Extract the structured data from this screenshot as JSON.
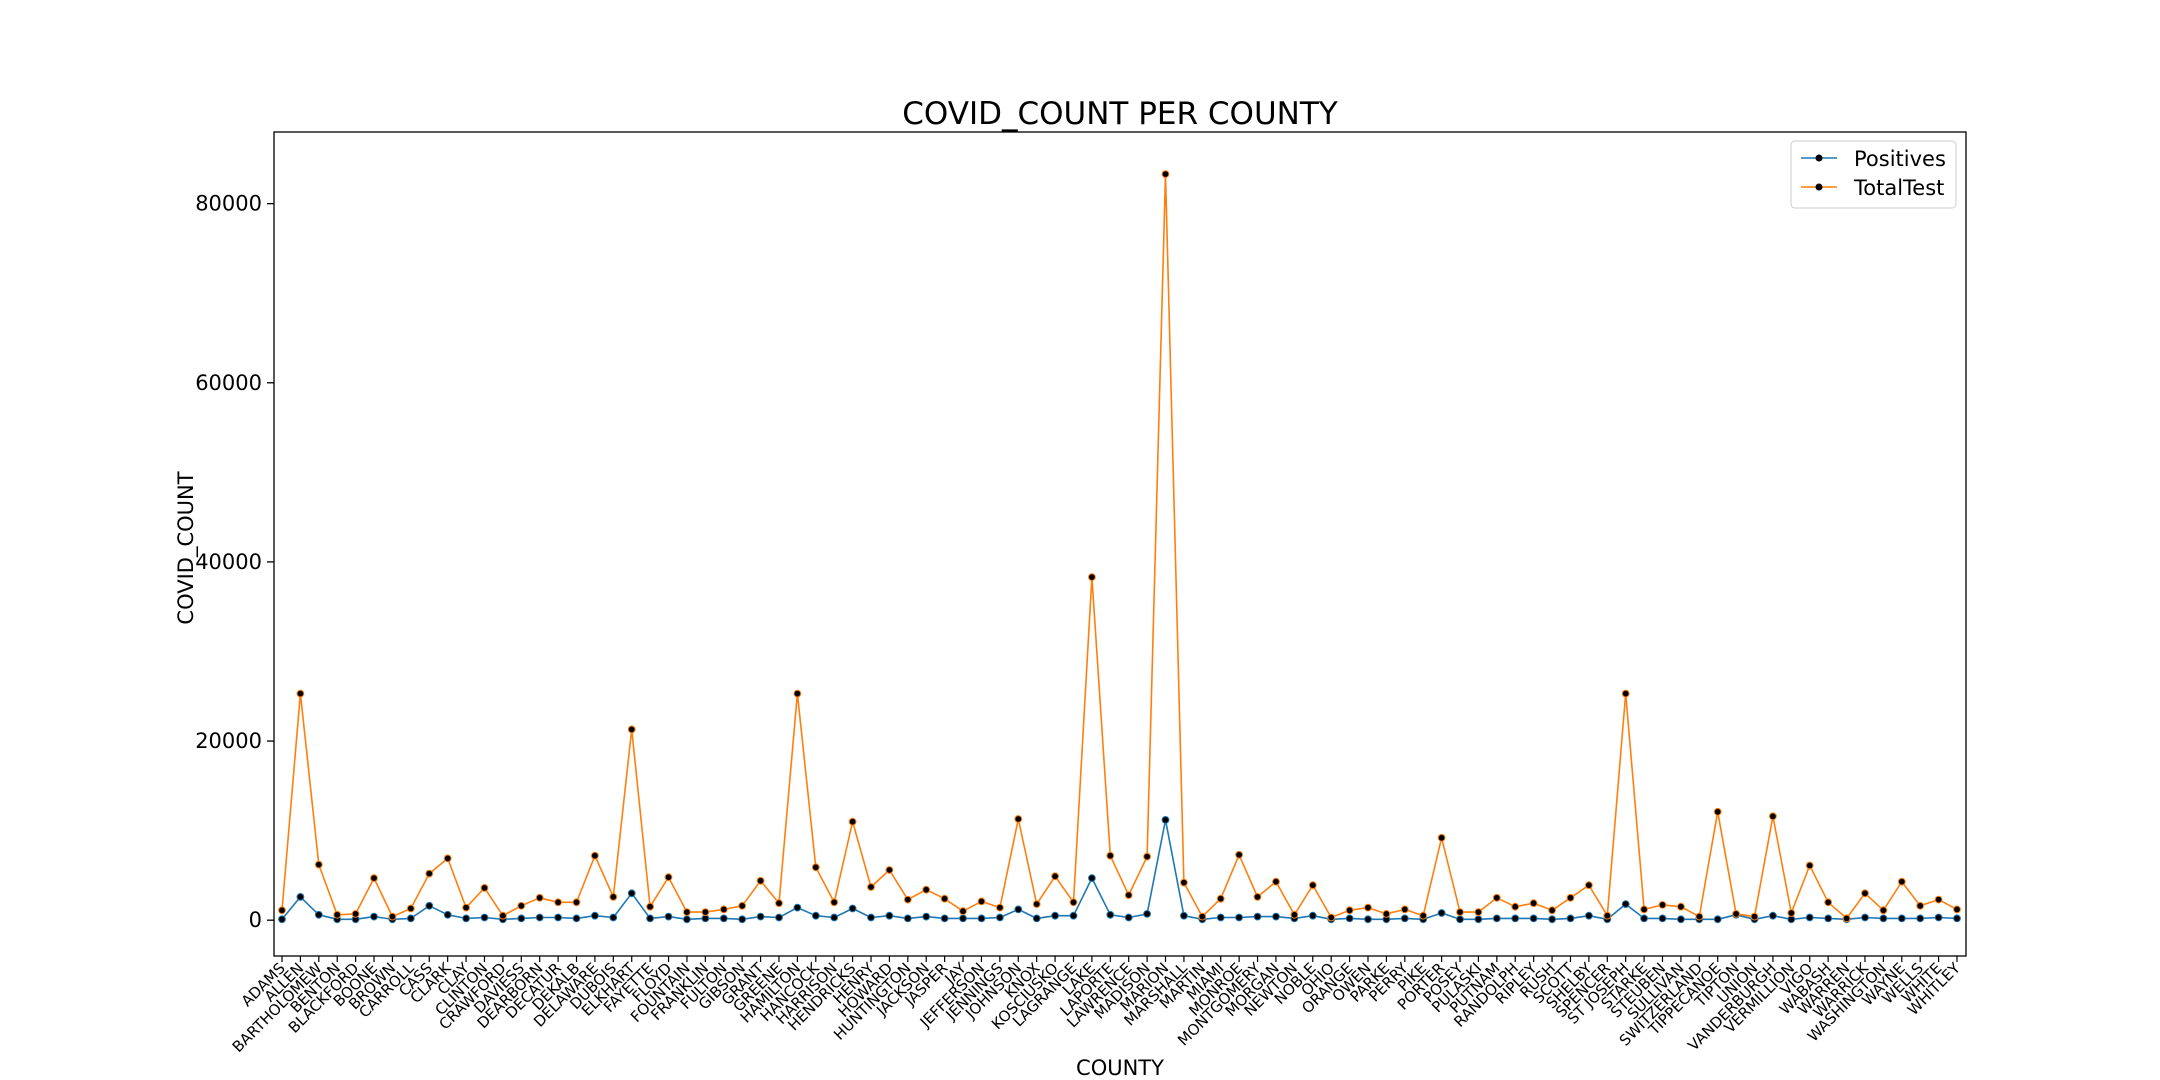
{
  "chart_data": {
    "type": "line",
    "title": "COVID_COUNT PER COUNTY",
    "xlabel": "COUNTY",
    "ylabel": "COVID_COUNT",
    "ylim": [
      -4000,
      88000
    ],
    "yticks": [
      0,
      20000,
      40000,
      60000,
      80000
    ],
    "ytick_labels": [
      "0",
      "20000",
      "40000",
      "60000",
      "80000"
    ],
    "grid": false,
    "legend_position": "top-right",
    "categories": [
      "ADAMS",
      "ALLEN",
      "BARTHOLOMEW",
      "BENTON",
      "BLACKFORD",
      "BOONE",
      "BROWN",
      "CARROLL",
      "CASS",
      "CLARK",
      "CLAY",
      "CLINTON",
      "CRAWFORD",
      "DAVIESS",
      "DEARBORN",
      "DECATUR",
      "DEKALB",
      "DELAWARE",
      "DUBOIS",
      "ELKHART",
      "FAYETTE",
      "FLOYD",
      "FOUNTAIN",
      "FRANKLIN",
      "FULTON",
      "GIBSON",
      "GRANT",
      "GREENE",
      "HAMILTON",
      "HANCOCK",
      "HARRISON",
      "HENDRICKS",
      "HENRY",
      "HOWARD",
      "HUNTINGTON",
      "JACKSON",
      "JASPER",
      "JAY",
      "JEFFERSON",
      "JENNINGS",
      "JOHNSON",
      "KNOX",
      "KOSCIUSKO",
      "LAGRANGE",
      "LAKE",
      "LAPORTE",
      "LAWRENCE",
      "MADISON",
      "MARION",
      "MARSHALL",
      "MARTIN",
      "MIAMI",
      "MONROE",
      "MONTGOMERY",
      "MORGAN",
      "NEWTON",
      "NOBLE",
      "OHIO",
      "ORANGE",
      "OWEN",
      "PARKE",
      "PERRY",
      "PIKE",
      "PORTER",
      "POSEY",
      "PULASKI",
      "PUTNAM",
      "RANDOLPH",
      "RIPLEY",
      "RUSH",
      "SCOTT",
      "SHELBY",
      "SPENCER",
      "ST JOSEPH",
      "STARKE",
      "STEUBEN",
      "SULLIVAN",
      "SWITZERLAND",
      "TIPPECANOE",
      "TIPTON",
      "UNION",
      "VANDERBURGH",
      "VERMILLION",
      "VIGO",
      "WABASH",
      "WARREN",
      "WARRICK",
      "WASHINGTON",
      "WAYNE",
      "WELLS",
      "WHITE",
      "WHITLEY"
    ],
    "series": [
      {
        "name": "Positives",
        "color": "#1f77b4",
        "values": [
          100,
          2600,
          600,
          100,
          100,
          400,
          100,
          200,
          1600,
          600,
          200,
          300,
          100,
          200,
          300,
          300,
          200,
          500,
          300,
          3000,
          200,
          400,
          100,
          200,
          200,
          100,
          400,
          300,
          1400,
          500,
          300,
          1300,
          300,
          500,
          200,
          400,
          200,
          200,
          200,
          300,
          1200,
          200,
          500,
          500,
          4700,
          600,
          300,
          700,
          11200,
          500,
          100,
          300,
          300,
          400,
          400,
          200,
          500,
          100,
          200,
          100,
          100,
          200,
          100,
          800,
          100,
          100,
          200,
          200,
          200,
          100,
          200,
          500,
          100,
          1800,
          200,
          200,
          100,
          100,
          100,
          600,
          100,
          500,
          100,
          300,
          200,
          100,
          300,
          200,
          200,
          200,
          300,
          200
        ]
      },
      {
        "name": "TotalTest",
        "color": "#ff7f0e",
        "values": [
          1100,
          25300,
          6200,
          600,
          700,
          4700,
          400,
          1300,
          5200,
          6900,
          1400,
          3600,
          500,
          1600,
          2500,
          2000,
          2000,
          7200,
          2600,
          21300,
          1500,
          4800,
          900,
          900,
          1200,
          1600,
          4400,
          1900,
          25300,
          5900,
          2000,
          11000,
          3700,
          5600,
          2300,
          3400,
          2400,
          1000,
          2100,
          1400,
          11300,
          1800,
          4900,
          2000,
          38300,
          7200,
          2800,
          7100,
          83300,
          4200,
          400,
          2400,
          7300,
          2600,
          4300,
          600,
          3900,
          300,
          1100,
          1400,
          700,
          1200,
          500,
          9200,
          900,
          900,
          2500,
          1500,
          1900,
          1100,
          2500,
          3900,
          500,
          25300,
          1200,
          1700,
          1500,
          400,
          12100,
          700,
          400,
          11600,
          800,
          6100,
          2000,
          200,
          3000,
          1100,
          4300,
          1600,
          2300,
          1200
        ]
      }
    ]
  }
}
